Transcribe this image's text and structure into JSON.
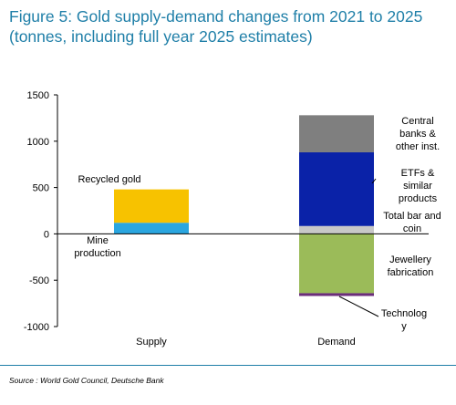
{
  "header": {
    "title_line1": "Figure 5: Gold supply-demand changes from 2021 to 2025",
    "title_line2": "(tonnes, including full year 2025 estimates)"
  },
  "chart_data": {
    "type": "bar",
    "stacked": true,
    "categories": [
      "Supply",
      "Demand"
    ],
    "ylim": [
      -1000,
      1500
    ],
    "yticks": [
      -1000,
      -500,
      0,
      500,
      1000,
      1500
    ],
    "grid": false,
    "series": [
      {
        "name": "Mine production",
        "values": [
          120,
          0
        ],
        "color": "#2aa6e0"
      },
      {
        "name": "Recycled gold",
        "values": [
          360,
          0
        ],
        "color": "#f7c200"
      },
      {
        "name": "Total bar and coin",
        "values": [
          0,
          85
        ],
        "color": "#c8c8c8"
      },
      {
        "name": "ETFs & similar products",
        "values": [
          0,
          795
        ],
        "color": "#0a22a8"
      },
      {
        "name": "Central banks & other inst.",
        "values": [
          0,
          400
        ],
        "color": "#7f7f7f"
      },
      {
        "name": "Jewellery fabrication",
        "values": [
          0,
          -640
        ],
        "color": "#9bbb59"
      },
      {
        "name": "Technology",
        "values": [
          0,
          -30
        ],
        "color": "#6b2d7a"
      }
    ],
    "annotations": {
      "mine": [
        "Mine",
        "production"
      ],
      "recycled": [
        "Recycled gold"
      ],
      "central": [
        "Central",
        "banks &",
        "other inst."
      ],
      "etf": [
        "ETFs &",
        "similar",
        "products"
      ],
      "barcoin": [
        "Total bar and",
        "coin"
      ],
      "jewellery": [
        "Jewellery",
        "fabrication"
      ],
      "technology": [
        "Technolog",
        "y"
      ]
    }
  },
  "footer": {
    "source": "Source : World Gold Council, Deutsche Bank"
  }
}
